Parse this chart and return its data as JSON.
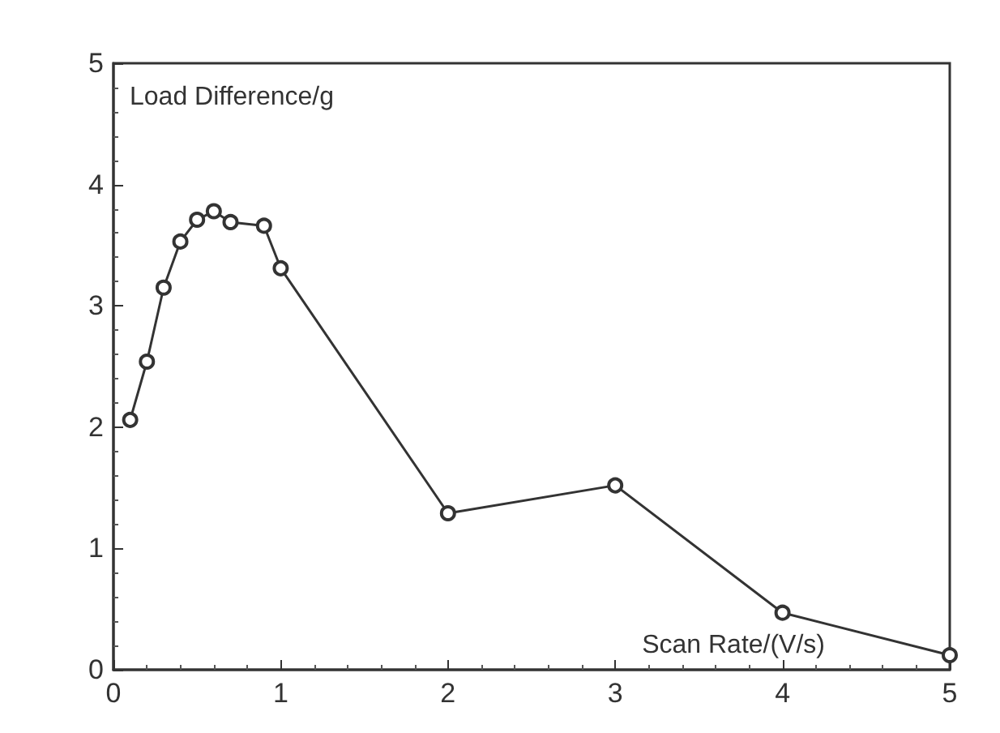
{
  "chart_data": {
    "type": "line",
    "xlabel": "Scan Rate/(V/s)",
    "ylabel": "Load Difference/g",
    "x": [
      0.1,
      0.2,
      0.3,
      0.4,
      0.5,
      0.6,
      0.7,
      0.9,
      1,
      2,
      3,
      4,
      5
    ],
    "series": [
      {
        "color": "#333333",
        "values": [
          2.06,
          2.54,
          3.15,
          3.53,
          3.71,
          3.78,
          3.69,
          3.66,
          3.31,
          1.29,
          1.52,
          0.47,
          0.12
        ]
      }
    ],
    "xlim": [
      0,
      5
    ],
    "xticks": [
      0,
      1,
      2,
      3,
      4,
      5
    ],
    "ylim": [
      0,
      5
    ],
    "yticks": [
      0,
      1,
      2,
      3,
      4,
      5
    ],
    "grid": false,
    "marker": "circle",
    "line_style": "solid"
  }
}
